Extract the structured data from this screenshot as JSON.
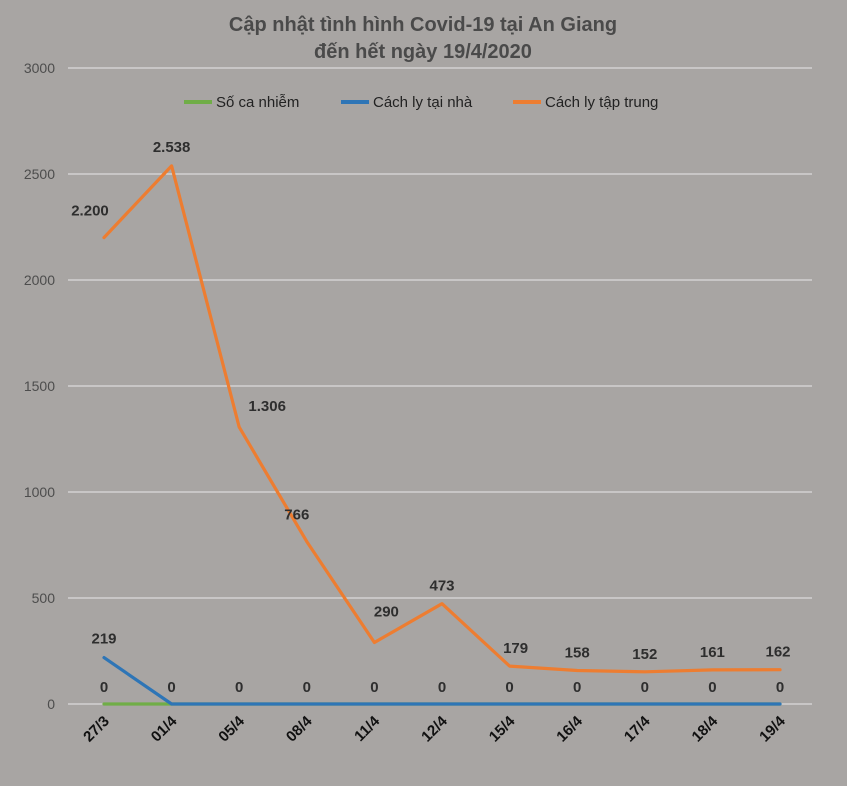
{
  "chart_data": {
    "type": "line",
    "title": "Cập nhật tình hình Covid-19  tại An Giang",
    "subtitle": "đến hết ngày 19/4/2020",
    "categories": [
      "27/3",
      "01/4",
      "05/4",
      "08/4",
      "11/4",
      "12/4",
      "15/4",
      "16/4",
      "17/4",
      "18/4",
      "19/4"
    ],
    "ylim": [
      0,
      3000
    ],
    "yticks": [
      0,
      500,
      1000,
      1500,
      2000,
      2500,
      3000
    ],
    "grid": true,
    "legend_position": "top",
    "series": [
      {
        "name": "Số ca nhiễm",
        "color": "#70ad47",
        "values": [
          0,
          0,
          0,
          0,
          0,
          0,
          0,
          0,
          0,
          0,
          0
        ],
        "labels": [
          "0",
          "0",
          "0",
          "0",
          "0",
          "0",
          "0",
          "0",
          "0",
          "0",
          "0"
        ]
      },
      {
        "name": "Cách ly tại nhà",
        "color": "#2e75b6",
        "values": [
          219,
          0,
          0,
          0,
          0,
          0,
          0,
          0,
          0,
          0,
          0
        ],
        "labels": [
          "219",
          "",
          "",
          "",
          "",
          "",
          "",
          "",
          "",
          "",
          ""
        ]
      },
      {
        "name": "Cách ly tập trung",
        "color": "#ed7d31",
        "values": [
          2200,
          2538,
          1306,
          766,
          290,
          473,
          179,
          158,
          152,
          161,
          162
        ],
        "labels": [
          "2.200",
          "2.538",
          "1.306",
          "766",
          "290",
          "473",
          "179",
          "158",
          "152",
          "161",
          "162"
        ]
      }
    ]
  }
}
